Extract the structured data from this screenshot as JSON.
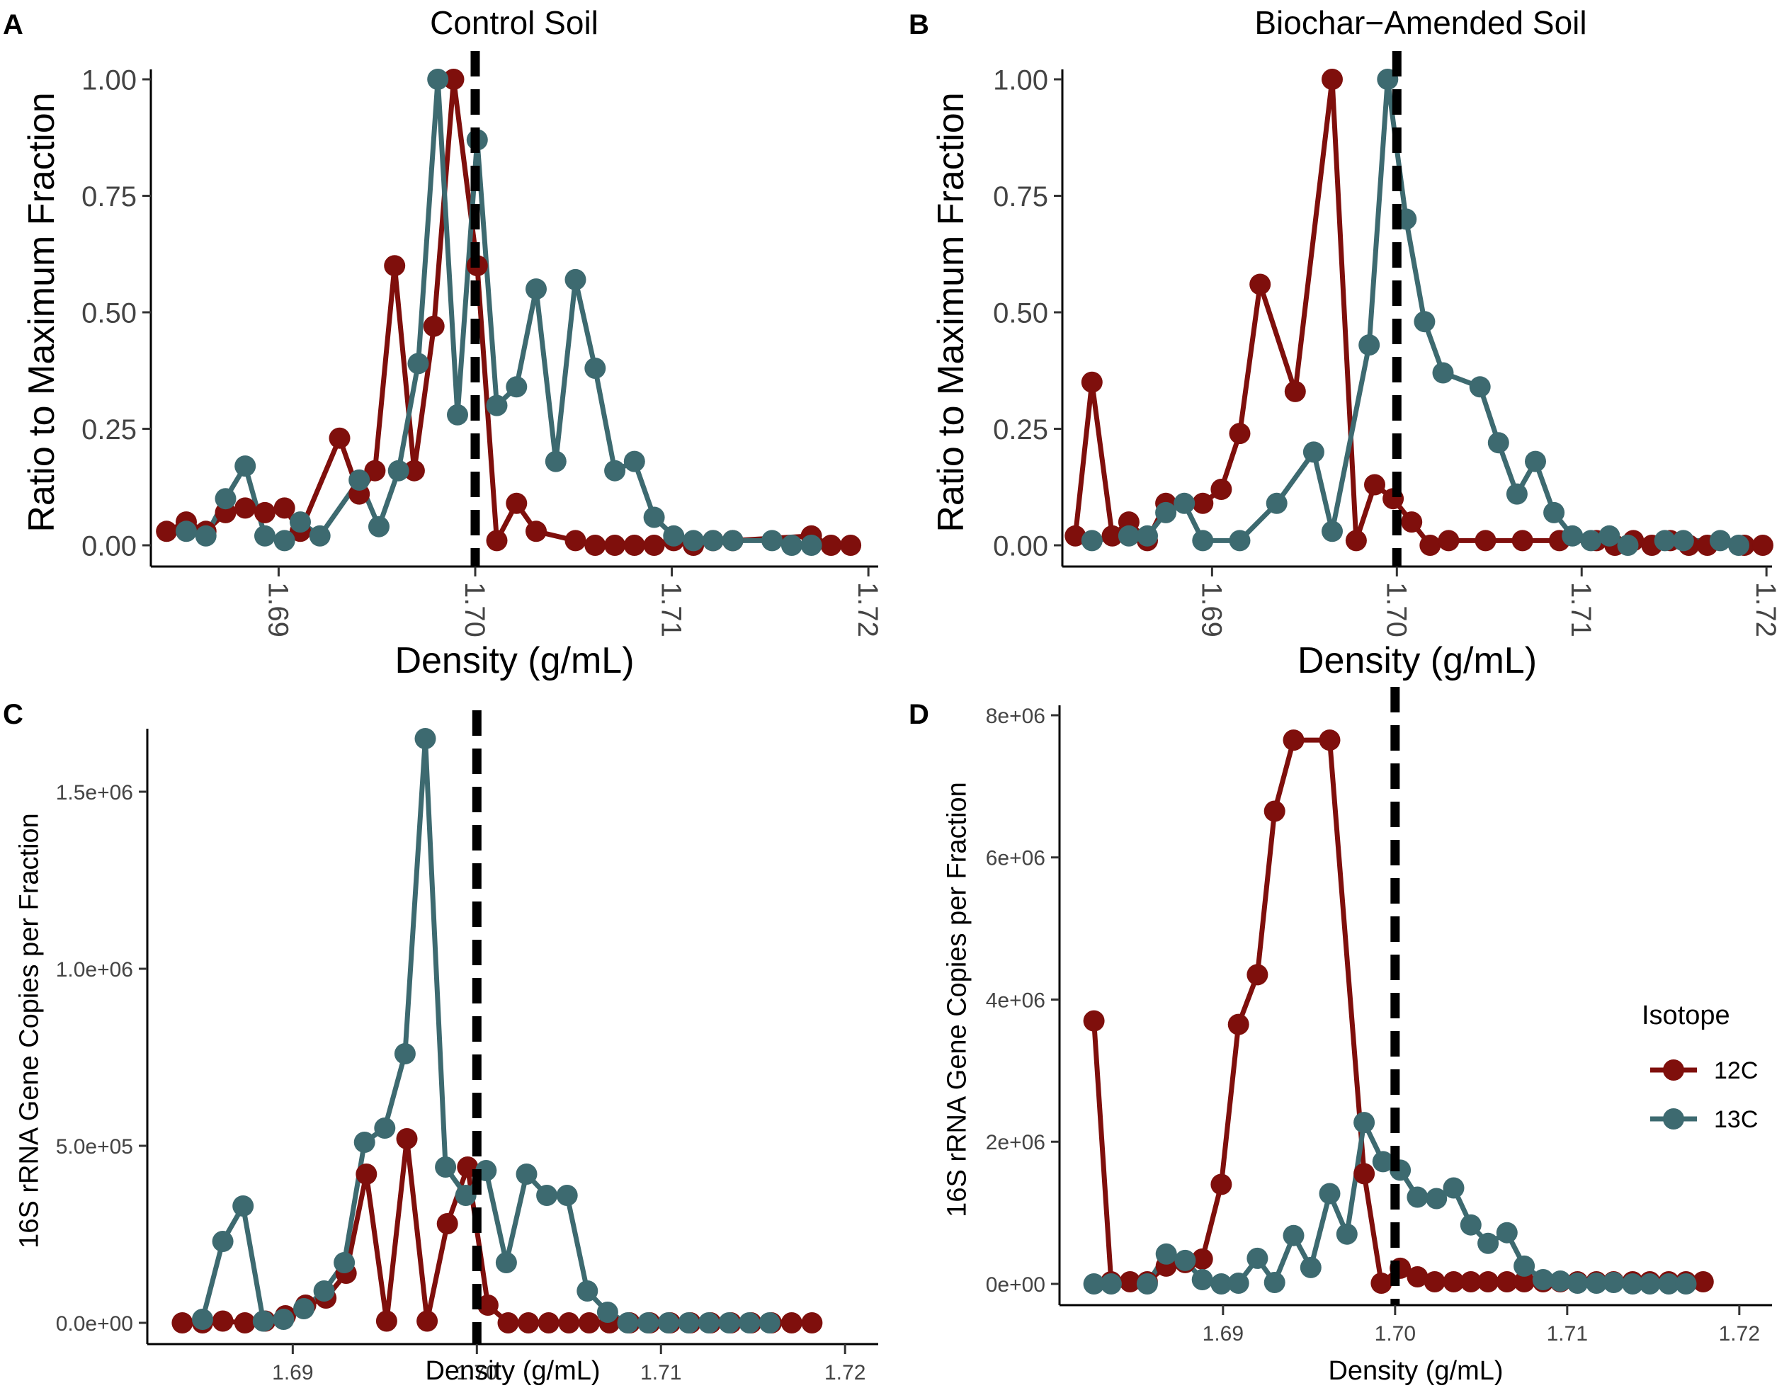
{
  "figure": {
    "legend": {
      "title": "Isotope",
      "entries": [
        {
          "label": "12C",
          "color": "#7f0f0c"
        },
        {
          "label": "13C",
          "color": "#3d6a70"
        }
      ]
    }
  },
  "chart_data": [
    {
      "type": "line",
      "panel_label": "A",
      "title": "Control Soil",
      "xlabel": "Density (g/mL)",
      "ylabel": "Ratio to Maximum Fraction",
      "xlim": [
        1.6835,
        1.7205
      ],
      "ylim": [
        0,
        1.0
      ],
      "x_ticks": [
        1.69,
        1.7,
        1.71,
        1.72
      ],
      "x_tick_labels": [
        "1.69",
        "1.70",
        "1.71",
        "1.72"
      ],
      "x_tick_rotation": 90,
      "y_ticks": [
        0,
        0.25,
        0.5,
        0.75,
        1.0
      ],
      "y_tick_labels": [
        "0.00",
        "0.25",
        "0.50",
        "0.75",
        "1.00"
      ],
      "vline": 1.7,
      "series": [
        {
          "name": "12C",
          "color": "#7f0f0c",
          "x": [
            1.6843,
            1.6853,
            1.6863,
            1.6873,
            1.6883,
            1.6893,
            1.6903,
            1.6911,
            1.6931,
            1.6941,
            1.6949,
            1.6959,
            1.6969,
            1.6979,
            1.6989,
            1.7001,
            1.7011,
            1.7021,
            1.7031,
            1.7051,
            1.7061,
            1.7071,
            1.7081,
            1.7091,
            1.7101,
            1.7111,
            1.7121,
            1.7131,
            1.7171,
            1.7181,
            1.7191
          ],
          "values": [
            0.03,
            0.05,
            0.03,
            0.07,
            0.08,
            0.07,
            0.08,
            0.03,
            0.23,
            0.11,
            0.16,
            0.6,
            0.16,
            0.47,
            1.0,
            0.6,
            0.01,
            0.09,
            0.03,
            0.01,
            0.0,
            0.0,
            0.0,
            0.0,
            0.01,
            0.0,
            0.01,
            0.01,
            0.02,
            0.0,
            0.0
          ]
        },
        {
          "name": "13C",
          "color": "#3d6a70",
          "x": [
            1.6853,
            1.6863,
            1.6873,
            1.6883,
            1.6893,
            1.6903,
            1.6911,
            1.6921,
            1.6941,
            1.6951,
            1.6961,
            1.6971,
            1.6981,
            1.6991,
            1.7001,
            1.7011,
            1.7021,
            1.7031,
            1.7041,
            1.7051,
            1.7061,
            1.7071,
            1.7081,
            1.7091,
            1.7101,
            1.7111,
            1.7121,
            1.7131,
            1.7151,
            1.7161,
            1.7171
          ],
          "values": [
            0.03,
            0.02,
            0.1,
            0.17,
            0.02,
            0.01,
            0.05,
            0.02,
            0.14,
            0.04,
            0.16,
            0.39,
            1.0,
            0.28,
            0.87,
            0.3,
            0.34,
            0.55,
            0.18,
            0.57,
            0.38,
            0.16,
            0.18,
            0.06,
            0.02,
            0.01,
            0.01,
            0.01,
            0.01,
            0.0,
            0.0
          ]
        }
      ]
    },
    {
      "type": "line",
      "panel_label": "B",
      "title": "Biochar−Amended Soil",
      "xlabel": "Density (g/mL)",
      "ylabel": "Ratio to Maximum Fraction",
      "xlim": [
        1.6819,
        1.7203
      ],
      "ylim": [
        0,
        1.0
      ],
      "x_ticks": [
        1.69,
        1.7,
        1.71,
        1.72
      ],
      "x_tick_labels": [
        "1.69",
        "1.70",
        "1.71",
        "1.72"
      ],
      "x_tick_rotation": 90,
      "y_ticks": [
        0,
        0.25,
        0.5,
        0.75,
        1.0
      ],
      "y_tick_labels": [
        "0.00",
        "0.25",
        "0.50",
        "0.75",
        "1.00"
      ],
      "vline": 1.7,
      "series": [
        {
          "name": "12C",
          "color": "#7f0f0c",
          "x": [
            1.6826,
            1.6835,
            1.6846,
            1.6855,
            1.6865,
            1.6875,
            1.6895,
            1.6905,
            1.6915,
            1.6926,
            1.6945,
            1.6965,
            1.6978,
            1.6988,
            1.6998,
            1.7008,
            1.7018,
            1.7028,
            1.7048,
            1.7068,
            1.7088,
            1.7108,
            1.7118,
            1.7128,
            1.7138,
            1.7148,
            1.7158,
            1.7168,
            1.7188,
            1.7198
          ],
          "values": [
            0.02,
            0.35,
            0.02,
            0.05,
            0.01,
            0.09,
            0.09,
            0.12,
            0.24,
            0.56,
            0.33,
            1.0,
            0.01,
            0.13,
            0.1,
            0.05,
            0.0,
            0.01,
            0.01,
            0.01,
            0.01,
            0.01,
            0.0,
            0.01,
            0.0,
            0.01,
            0.0,
            0.0,
            0.0,
            0.0
          ]
        },
        {
          "name": "13C",
          "color": "#3d6a70",
          "x": [
            1.6835,
            1.6855,
            1.6865,
            1.6875,
            1.6885,
            1.6895,
            1.6915,
            1.6935,
            1.6955,
            1.6965,
            1.6985,
            1.6995,
            1.7005,
            1.7015,
            1.7025,
            1.7045,
            1.7055,
            1.7065,
            1.7075,
            1.7085,
            1.7095,
            1.7105,
            1.7115,
            1.7125,
            1.7145,
            1.7155,
            1.7175,
            1.7185
          ],
          "values": [
            0.01,
            0.02,
            0.02,
            0.07,
            0.09,
            0.01,
            0.01,
            0.09,
            0.2,
            0.03,
            0.43,
            1.0,
            0.7,
            0.48,
            0.37,
            0.34,
            0.22,
            0.11,
            0.18,
            0.07,
            0.02,
            0.01,
            0.02,
            0.0,
            0.01,
            0.01,
            0.01,
            0.0
          ]
        }
      ]
    },
    {
      "type": "line",
      "panel_label": "C",
      "title": "",
      "xlabel": "Density (g/mL)",
      "ylabel": "16S rRNA Gene Copies per Fraction",
      "xlim": [
        1.6821,
        1.7218
      ],
      "ylim": [
        0,
        1650000
      ],
      "x_ticks": [
        1.69,
        1.7,
        1.71,
        1.72
      ],
      "x_tick_labels": [
        "1.69",
        "1.70",
        "1.71",
        "1.72"
      ],
      "x_tick_rotation": 0,
      "y_ticks": [
        0,
        500000,
        1000000,
        1500000
      ],
      "y_tick_labels": [
        "0.0e+00",
        "5.0e+05",
        "1.0e+06",
        "1.5e+06"
      ],
      "vline": 1.7,
      "series": [
        {
          "name": "12C",
          "color": "#7f0f0c",
          "x": [
            1.684,
            1.6851,
            1.6862,
            1.6874,
            1.6885,
            1.6896,
            1.6907,
            1.6918,
            1.6929,
            1.694,
            1.6951,
            1.6962,
            1.6973,
            1.6984,
            1.6995,
            1.7006,
            1.7017,
            1.7028,
            1.7039,
            1.705,
            1.7061,
            1.7072,
            1.7083,
            1.7094,
            1.7105,
            1.7116,
            1.7127,
            1.7138,
            1.7149,
            1.716,
            1.7171,
            1.7182
          ],
          "values": [
            0,
            0,
            5000,
            0,
            5000,
            20000,
            50000,
            70000,
            140000,
            420000,
            5000,
            520000,
            5000,
            280000,
            440000,
            50000,
            0,
            0,
            0,
            0,
            0,
            0,
            0,
            0,
            0,
            0,
            0,
            0,
            0,
            0,
            0,
            0
          ]
        },
        {
          "name": "13C",
          "color": "#3d6a70",
          "x": [
            1.6851,
            1.6862,
            1.6873,
            1.6884,
            1.6895,
            1.6906,
            1.6917,
            1.6928,
            1.6939,
            1.695,
            1.6961,
            1.6972,
            1.6983,
            1.6994,
            1.7005,
            1.7016,
            1.7027,
            1.7038,
            1.7049,
            1.706,
            1.7071,
            1.7082,
            1.7093,
            1.7104,
            1.7115,
            1.7126,
            1.7137,
            1.7148,
            1.7159
          ],
          "values": [
            10000,
            230000,
            330000,
            5000,
            10000,
            40000,
            90000,
            170000,
            510000,
            550000,
            760000,
            1650000,
            440000,
            360000,
            430000,
            170000,
            420000,
            360000,
            360000,
            90000,
            30000,
            0,
            0,
            0,
            0,
            0,
            0,
            0,
            0
          ]
        }
      ]
    },
    {
      "type": "line",
      "panel_label": "D",
      "title": "",
      "xlabel": "Density (g/mL)",
      "ylabel": "16S rRNA Gene Copies per Fraction",
      "xlim": [
        1.6805,
        1.7219
      ],
      "ylim": [
        0,
        8000000
      ],
      "x_ticks": [
        1.69,
        1.7,
        1.71,
        1.72
      ],
      "x_tick_labels": [
        "1.69",
        "1.70",
        "1.71",
        "1.72"
      ],
      "x_tick_rotation": 0,
      "y_ticks": [
        0,
        2000000,
        4000000,
        6000000,
        8000000
      ],
      "y_tick_labels": [
        "0e+00",
        "2e+06",
        "4e+06",
        "6e+06",
        "8e+06"
      ],
      "vline": 1.7,
      "series": [
        {
          "name": "12C",
          "color": "#7f0f0c",
          "x": [
            1.6825,
            1.6835,
            1.6846,
            1.6856,
            1.6867,
            1.6878,
            1.6888,
            1.6899,
            1.6909,
            1.692,
            1.693,
            1.6941,
            1.6962,
            1.6982,
            1.6992,
            1.7003,
            1.7013,
            1.7023,
            1.7034,
            1.7044,
            1.7054,
            1.7065,
            1.7075,
            1.7086,
            1.7096,
            1.7106,
            1.7117,
            1.7127,
            1.7138,
            1.7148,
            1.7159,
            1.7169,
            1.7179
          ],
          "values": [
            3700000,
            30000,
            30000,
            30000,
            250000,
            300000,
            350000,
            1400000,
            3650000,
            4350000,
            6650000,
            7650000,
            7650000,
            1550000,
            10000,
            220000,
            100000,
            30000,
            30000,
            30000,
            30000,
            30000,
            30000,
            30000,
            30000,
            30000,
            30000,
            30000,
            30000,
            30000,
            30000,
            30000,
            30000
          ]
        },
        {
          "name": "13C",
          "color": "#3d6a70",
          "x": [
            1.6825,
            1.6835,
            1.6856,
            1.6867,
            1.6878,
            1.6888,
            1.6899,
            1.6909,
            1.692,
            1.693,
            1.6941,
            1.6951,
            1.6962,
            1.6972,
            1.6982,
            1.6993,
            1.7003,
            1.7013,
            1.7024,
            1.7034,
            1.7044,
            1.7054,
            1.7065,
            1.7075,
            1.7086,
            1.7096,
            1.7106,
            1.7117,
            1.7127,
            1.7138,
            1.7148,
            1.7159,
            1.7169
          ],
          "values": [
            0,
            0,
            0,
            420000,
            330000,
            60000,
            0,
            10000,
            360000,
            20000,
            680000,
            230000,
            1270000,
            700000,
            2270000,
            1720000,
            1600000,
            1220000,
            1200000,
            1350000,
            830000,
            570000,
            720000,
            250000,
            60000,
            40000,
            10000,
            10000,
            20000,
            0,
            0,
            0,
            0
          ]
        }
      ]
    }
  ]
}
